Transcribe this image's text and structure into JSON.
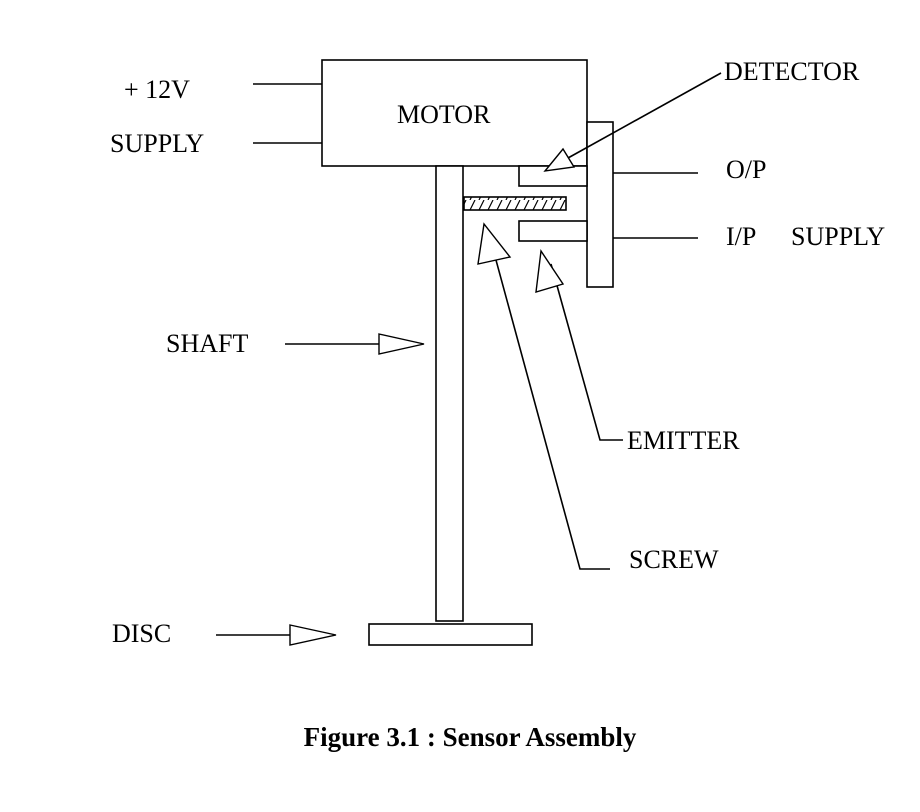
{
  "labels": {
    "plus12v": "+ 12V",
    "supply_left": "SUPPLY",
    "motor": "MOTOR",
    "detector": "DETECTOR",
    "op": "O/P",
    "ip": "I/P",
    "supply_right": "SUPPLY",
    "shaft": "SHAFT",
    "emitter": "EMITTER",
    "screw": "SCREW",
    "disc": "DISC"
  },
  "caption": "Figure 3.1 : Sensor Assembly",
  "colors": {
    "stroke": "#000000",
    "background": "#ffffff"
  }
}
